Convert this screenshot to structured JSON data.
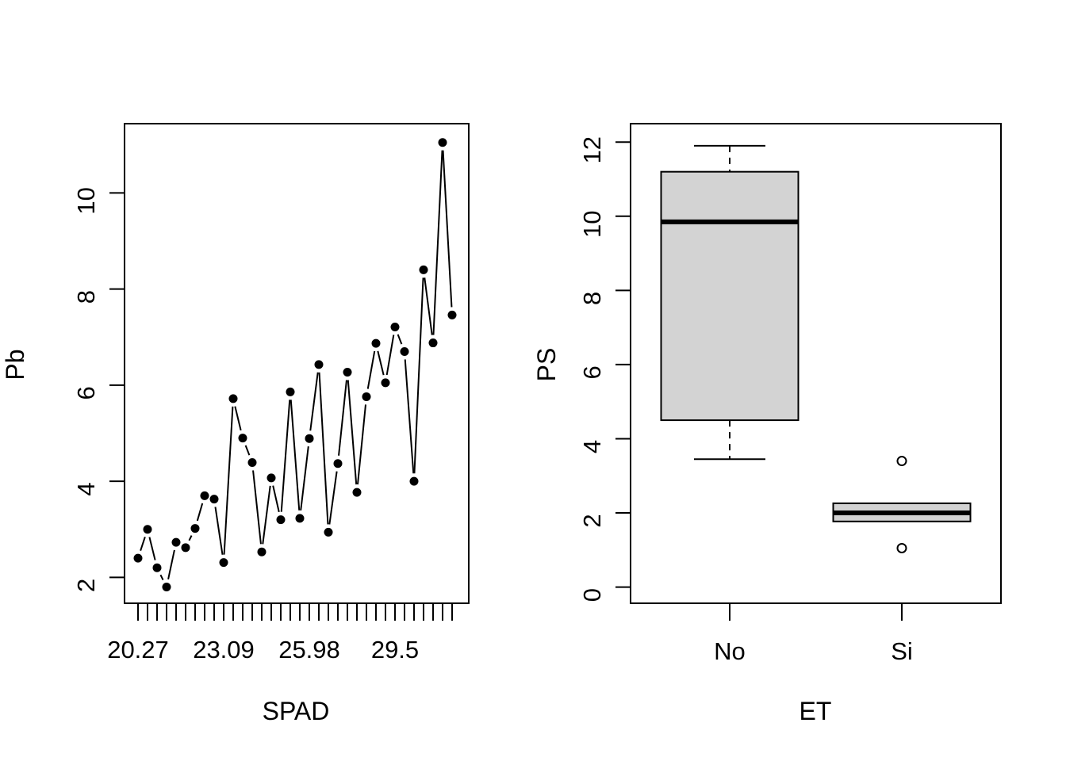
{
  "figure": {
    "background": "#ffffff",
    "foreground": "#000000",
    "box_fill": "#d3d3d3"
  },
  "chart_data": [
    {
      "type": "scatter",
      "title": "",
      "xlabel": "SPAD",
      "ylabel": "Pb",
      "connect_style": "points-with-line-segments (R type='b')",
      "x_axis": {
        "kind": "factor",
        "n_levels": 34,
        "shown_tick_labels": [
          {
            "level": 1,
            "label": "20.27"
          },
          {
            "level": 10,
            "label": "23.09"
          },
          {
            "level": 19,
            "label": "25.98"
          },
          {
            "level": 28,
            "label": "29.5"
          }
        ]
      },
      "y_ticks": [
        "2",
        "4",
        "6",
        "8",
        "10"
      ],
      "ylim": [
        1.43,
        11.42
      ],
      "grid": false,
      "values": [
        2.4,
        3.0,
        2.2,
        1.8,
        2.73,
        2.62,
        3.02,
        3.7,
        3.63,
        2.31,
        5.72,
        4.9,
        4.39,
        2.53,
        4.07,
        3.2,
        5.86,
        3.23,
        4.89,
        6.43,
        2.94,
        4.37,
        6.27,
        3.77,
        5.76,
        6.87,
        6.05,
        7.21,
        6.7,
        4.0,
        8.4,
        6.88,
        11.05,
        7.46
      ]
    },
    {
      "type": "boxplot",
      "title": "",
      "xlabel": "ET",
      "ylabel": "PS",
      "y_ticks": [
        "0",
        "2",
        "4",
        "6",
        "8",
        "10",
        "12"
      ],
      "ylim": [
        -0.44,
        12.5
      ],
      "grid": false,
      "groups": [
        {
          "label": "No",
          "q1": 4.5,
          "median": 9.85,
          "q3": 11.2,
          "whisker_low": 3.45,
          "whisker_high": 11.9,
          "outliers": []
        },
        {
          "label": "Si",
          "q1": 1.77,
          "median": 2.0,
          "q3": 2.26,
          "whisker_low": 1.77,
          "whisker_high": 2.26,
          "outliers": [
            3.4,
            1.05
          ]
        }
      ]
    }
  ]
}
